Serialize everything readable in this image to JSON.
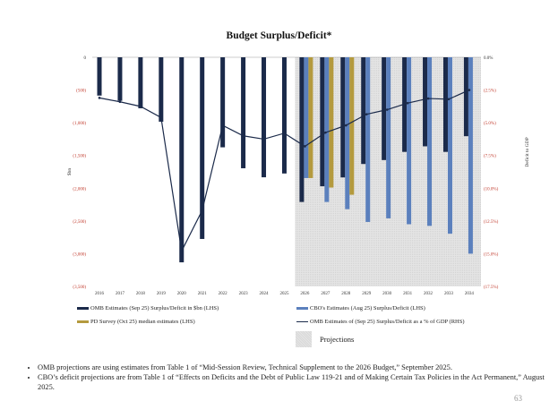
{
  "chart_data": {
    "type": "bar+line",
    "title": "Budget Surplus/Deficit*",
    "ylabel_left": "$bn",
    "ylabel_right": "Deficit to GDP",
    "categories": [
      "2016",
      "2017",
      "2018",
      "2019",
      "2020",
      "2021",
      "2022",
      "2023",
      "2024",
      "2025",
      "2026",
      "2027",
      "2028",
      "2029",
      "2030",
      "2031",
      "2032",
      "2033",
      "2034"
    ],
    "ylim_left": [
      -3500,
      0
    ],
    "ylim_right": [
      -17.5,
      0
    ],
    "left_ticks": [
      "0",
      "(500)",
      "(1,000)",
      "(1,500)",
      "(2,000)",
      "(2,500)",
      "(3,000)",
      "(3,500)"
    ],
    "right_ticks": [
      "0.0%",
      "(2.5%)",
      "(5.0%)",
      "(7.5%)",
      "(10.0%)",
      "(12.5%)",
      "(15.0%)",
      "(17.5%)"
    ],
    "projection_start": "2026",
    "series": [
      {
        "name": "OMB Estimates (Sep 25) Surplus/Deficit in $bn (LHS)",
        "type": "bar",
        "axis": "left",
        "color": "#1b2a4a",
        "values": [
          -585,
          -665,
          -779,
          -984,
          -3132,
          -2775,
          -1375,
          -1695,
          -1833,
          -1775,
          -2210,
          -1970,
          -1835,
          -1630,
          -1570,
          -1445,
          -1360,
          -1445,
          -1205
        ]
      },
      {
        "name": "CBO's Estimates (Aug 25) Surplus/Deficit (LHS)",
        "type": "bar",
        "axis": "left",
        "color": "#5b80bd",
        "values": [
          null,
          null,
          null,
          null,
          null,
          null,
          null,
          null,
          null,
          null,
          -1845,
          -2210,
          -2320,
          -2515,
          -2460,
          -2550,
          -2575,
          -2695,
          -3000
        ]
      },
      {
        "name": "PD Survey (Oct 25) median estimates (LHS)",
        "type": "bar",
        "axis": "left",
        "color": "#b49a3e",
        "values": [
          null,
          null,
          null,
          null,
          null,
          null,
          null,
          null,
          null,
          null,
          -1845,
          -1990,
          -2100,
          null,
          null,
          null,
          null,
          null,
          null
        ]
      },
      {
        "name": "OMB Estimates of (Sep 25) Surplus/Deficit as a % of GDP (RHS)",
        "type": "line",
        "axis": "right",
        "color": "#1b2a4a",
        "values": [
          -3.1,
          -3.4,
          -3.75,
          -4.6,
          -14.8,
          -11.7,
          -5.2,
          -6.0,
          -6.25,
          -5.8,
          -6.8,
          -5.75,
          -5.2,
          -4.35,
          -4.0,
          -3.5,
          -3.15,
          -3.2,
          -2.5
        ]
      }
    ],
    "projection_label": "Projections",
    "grid": false,
    "legend": "bottom"
  },
  "notes": [
    "OMB projections are using estimates from Table 1 of “Mid-Session Review,  Technical Supplement to the 2026 Budget,” September 2025.",
    "CBO’s deficit projections are from Table 1 of “Effects on Deficits and the Debt of Public Law 119-21 and of Making Certain Tax Policies in the Act Permanent,” August 2025."
  ],
  "page_number": "63"
}
